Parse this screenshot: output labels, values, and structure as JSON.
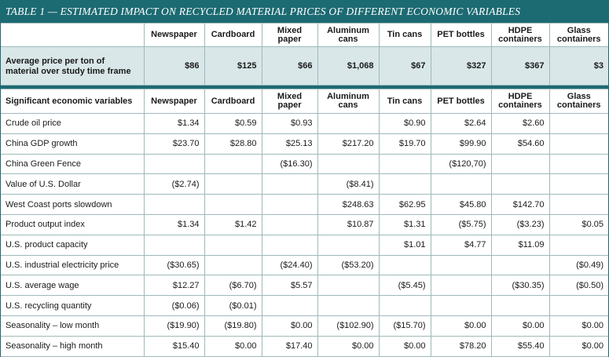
{
  "title": "TABLE 1 — ESTIMATED IMPACT ON RECYCLED MATERIAL PRICES OF DIFFERENT ECONOMIC VARIABLES",
  "columns": [
    "Newspaper",
    "Cardboard",
    "Mixed paper",
    "Aluminum cans",
    "Tin cans",
    "PET bottles",
    "HDPE containers",
    "Glass containers"
  ],
  "average": {
    "label": "Average price per ton of material over study time frame",
    "values": [
      "$86",
      "$125",
      "$66",
      "$1,068",
      "$67",
      "$327",
      "$367",
      "$3"
    ]
  },
  "variables_header": "Significant economic variables",
  "rows": [
    {
      "label": "Crude oil price",
      "values": [
        "$1.34",
        "$0.59",
        "$0.93",
        "",
        "$0.90",
        "$2.64",
        "$2.60",
        ""
      ]
    },
    {
      "label": "China GDP growth",
      "values": [
        "$23.70",
        "$28.80",
        "$25.13",
        "$217.20",
        "$19.70",
        "$99.90",
        "$54.60",
        ""
      ]
    },
    {
      "label": "China Green Fence",
      "values": [
        "",
        "",
        "($16.30)",
        "",
        "",
        "($120,70)",
        "",
        ""
      ]
    },
    {
      "label": "Value of U.S. Dollar",
      "values": [
        "($2.74)",
        "",
        "",
        "($8.41)",
        "",
        "",
        "",
        ""
      ]
    },
    {
      "label": "West Coast ports slowdown",
      "values": [
        "",
        "",
        "",
        "$248.63",
        "$62.95",
        "$45.80",
        "$142.70",
        ""
      ]
    },
    {
      "label": "Product output index",
      "values": [
        "$1.34",
        "$1.42",
        "",
        "$10.87",
        "$1.31",
        "($5.75)",
        "($3.23)",
        "$0.05"
      ]
    },
    {
      "label": "U.S. product capacity",
      "values": [
        "",
        "",
        "",
        "",
        "$1.01",
        "$4.77",
        "$11.09",
        ""
      ]
    },
    {
      "label": "U.S. industrial electricity price",
      "values": [
        "($30.65)",
        "",
        "($24.40)",
        "($53.20)",
        "",
        "",
        "",
        "($0.49)"
      ]
    },
    {
      "label": "U.S. average wage",
      "values": [
        "$12.27",
        "($6.70)",
        "$5.57",
        "",
        "($5.45)",
        "",
        "($30.35)",
        "($0.50)"
      ]
    },
    {
      "label": "U.S. recycling quantity",
      "values": [
        "($0.06)",
        "($0.01)",
        "",
        "",
        "",
        "",
        "",
        ""
      ]
    },
    {
      "label": "Seasonality – low month",
      "values": [
        "($19.90)",
        "($19.80)",
        "$0.00",
        "($102.90)",
        "($15.70)",
        "$0.00",
        "$0.00",
        "$0.00"
      ]
    },
    {
      "label": "Seasonality – high month",
      "values": [
        "$15.40",
        "$0.00",
        "$17.40",
        "$0.00",
        "$0.00",
        "$78.20",
        "$55.40",
        "$0.00"
      ]
    }
  ]
}
